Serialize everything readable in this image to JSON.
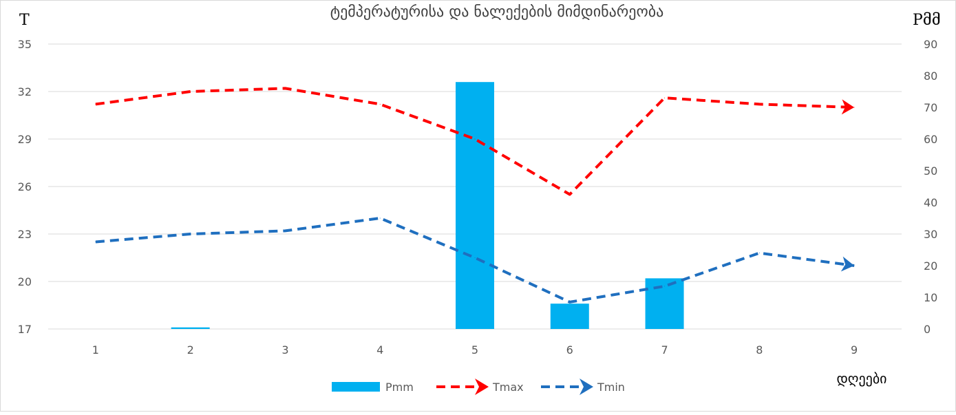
{
  "chart_data": {
    "type": "bar-line-combo",
    "title": "ტემპერატურისა და ნალექების მიმდინარეობა",
    "categories": [
      "1",
      "2",
      "3",
      "4",
      "5",
      "6",
      "7",
      "8",
      "9"
    ],
    "x_label": "დღეები",
    "y_left": {
      "label": "T",
      "ticks": [
        "17",
        "20",
        "23",
        "26",
        "29",
        "32",
        "35"
      ],
      "range": [
        17,
        35
      ]
    },
    "y_right": {
      "label": "Pმმ",
      "ticks": [
        "0",
        "10",
        "20",
        "30",
        "40",
        "50",
        "60",
        "70",
        "80",
        "90"
      ],
      "range": [
        0,
        90
      ]
    },
    "grid": true,
    "legend_position": "bottom",
    "series": [
      {
        "name": "Pmm",
        "type": "bar",
        "axis": "right",
        "color": "#00B0F0",
        "values": [
          0,
          0.5,
          0,
          0,
          78,
          8,
          16,
          0,
          0
        ]
      },
      {
        "name": "Tmax",
        "type": "line",
        "axis": "left",
        "style": "dashed-arrow",
        "color": "#FF0000",
        "values": [
          31.2,
          32.0,
          32.2,
          31.2,
          29.0,
          25.5,
          31.6,
          31.2,
          31.0
        ]
      },
      {
        "name": "Tmin",
        "type": "line",
        "axis": "left",
        "style": "dashed-arrow",
        "color": "#1F6FBF",
        "values": [
          22.5,
          23.0,
          23.2,
          24.0,
          21.5,
          18.7,
          19.7,
          21.8,
          21.0
        ]
      }
    ]
  }
}
